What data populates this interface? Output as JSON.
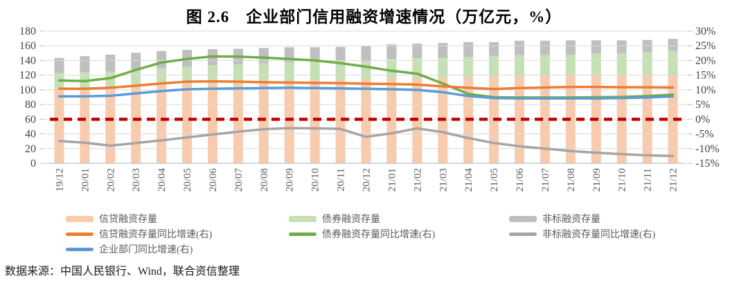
{
  "title": "图 2.6　企业部门信用融资增速情况（万亿元，%）",
  "source_note": "数据来源：中国人民银行、Wind，联合资信整理",
  "colors": {
    "bar_credit": "#F8CBAD",
    "bar_bond": "#C5E0B4",
    "bar_nonstd": "#BFBFBF",
    "line_credit_growth": "#ED7D31",
    "line_bond_growth": "#70AD47",
    "line_nonstd_growth": "#A5A5A5",
    "line_corporate_growth": "#5B9BD5",
    "reference_line": "#C00000",
    "gridline": "#D9D9D9",
    "axis_line": "#BFBFBF",
    "axis_label": "#3F3F3F",
    "x_label": "#595959"
  },
  "chart_data": {
    "type": "combo-stacked-bar-line",
    "categories": [
      "19/12",
      "20/01",
      "20/02",
      "20/03",
      "20/04",
      "20/05",
      "20/06",
      "20/07",
      "20/08",
      "20/09",
      "20/10",
      "20/11",
      "20/12",
      "21/01",
      "21/02",
      "21/03",
      "21/04",
      "21/05",
      "21/06",
      "21/07",
      "21/08",
      "21/09",
      "21/10",
      "21/11",
      "21/12"
    ],
    "left_axis": {
      "min": 0,
      "max": 180,
      "step": 20,
      "tick_labels": [
        "180",
        "160",
        "140",
        "120",
        "100",
        "80",
        "60",
        "40",
        "20",
        "0"
      ]
    },
    "right_axis": {
      "min": -15,
      "max": 30,
      "step": 5,
      "tick_labels": [
        "30%",
        "25%",
        "20%",
        "15%",
        "10%",
        "5%",
        "0%",
        "-5%",
        "-10%",
        "-15%"
      ]
    },
    "bar_series": [
      {
        "name": "信贷融资存量",
        "color": "#F8CBAD",
        "values": [
          102,
          103,
          104,
          105.5,
          107,
          108,
          109,
          110,
          111,
          112,
          112.5,
          113.5,
          114.5,
          115.5,
          116,
          116.5,
          117,
          117.5,
          118,
          118.5,
          118.5,
          119,
          119,
          119.5,
          120
        ]
      },
      {
        "name": "债券融资存量",
        "color": "#C5E0B4",
        "values": [
          21,
          21,
          21,
          22,
          22.5,
          23.5,
          24.5,
          24.5,
          25.5,
          25.5,
          26,
          25.5,
          24.5,
          26.5,
          27,
          27,
          28,
          29,
          29.5,
          29,
          29.5,
          30.5,
          31,
          32,
          33
        ]
      },
      {
        "name": "非标融资存量",
        "color": "#BFBFBF",
        "values": [
          20.5,
          22,
          23,
          23,
          23.5,
          23,
          22,
          21.5,
          20.5,
          20.5,
          19.5,
          19.5,
          20.5,
          20,
          20,
          20.5,
          20,
          18.5,
          19.5,
          19.5,
          19.5,
          18,
          17.5,
          16.5,
          16.5
        ]
      }
    ],
    "line_series": [
      {
        "name": "非标融资存量同比增速(右)",
        "color": "#A5A5A5",
        "axis": "right",
        "values": [
          -7.4,
          -8.0,
          -9.0,
          -8.1,
          -7.2,
          -6.2,
          -5.2,
          -4.2,
          -3.4,
          -3.0,
          -3.1,
          -3.3,
          -6.0,
          -4.8,
          -3.1,
          -4.4,
          -6.4,
          -8.1,
          -9.2,
          -10.0,
          -10.8,
          -11.4,
          -11.9,
          -12.3,
          -12.5
        ]
      },
      {
        "name": "债券融资存量同比增速(右)",
        "color": "#70AD47",
        "axis": "right",
        "values": [
          13.2,
          13.0,
          14.0,
          16.8,
          19.3,
          20.5,
          21.4,
          21.3,
          21.0,
          20.5,
          20.0,
          19.1,
          17.9,
          16.5,
          15.5,
          12.2,
          8.6,
          7.5,
          7.4,
          7.4,
          7.4,
          7.5,
          7.6,
          7.9,
          8.4
        ]
      },
      {
        "name": "信贷融资存量同比增速(右)",
        "color": "#ED7D31",
        "axis": "right",
        "values": [
          10.4,
          10.4,
          10.7,
          11.4,
          12.2,
          12.8,
          12.9,
          12.8,
          12.6,
          12.5,
          12.4,
          12.3,
          12.1,
          12.0,
          11.8,
          11.2,
          10.7,
          10.3,
          10.6,
          10.8,
          11.0,
          11.0,
          10.9,
          10.9,
          10.8
        ]
      },
      {
        "name": "企业部门同比增速(右)",
        "color": "#5B9BD5",
        "axis": "right",
        "values": [
          7.8,
          7.8,
          8.0,
          8.8,
          9.6,
          10.2,
          10.4,
          10.5,
          10.6,
          10.7,
          10.6,
          10.5,
          10.4,
          10.2,
          10.0,
          9.2,
          7.9,
          7.2,
          7.1,
          7.1,
          7.1,
          7.1,
          7.2,
          7.4,
          7.8
        ]
      }
    ],
    "reference_line": {
      "axis": "right",
      "value": 0,
      "color": "#C00000",
      "style": "dashed"
    }
  },
  "legend_columns": [
    [
      {
        "type": "bar",
        "color": "#F8CBAD",
        "label": "信贷融资存量"
      },
      {
        "type": "line",
        "color": "#ED7D31",
        "label": "信贷融资存量同比增速(右)"
      },
      {
        "type": "line",
        "color": "#5B9BD5",
        "label": "企业部门同比增速(右)"
      }
    ],
    [
      {
        "type": "bar",
        "color": "#C5E0B4",
        "label": "债券融资存量"
      },
      {
        "type": "line",
        "color": "#70AD47",
        "label": "债券融资存量同比增速(右)"
      }
    ],
    [
      {
        "type": "bar",
        "color": "#BFBFBF",
        "label": "非标融资存量"
      },
      {
        "type": "line",
        "color": "#A5A5A5",
        "label": "非标融资存量同比增速(右)"
      }
    ]
  ]
}
